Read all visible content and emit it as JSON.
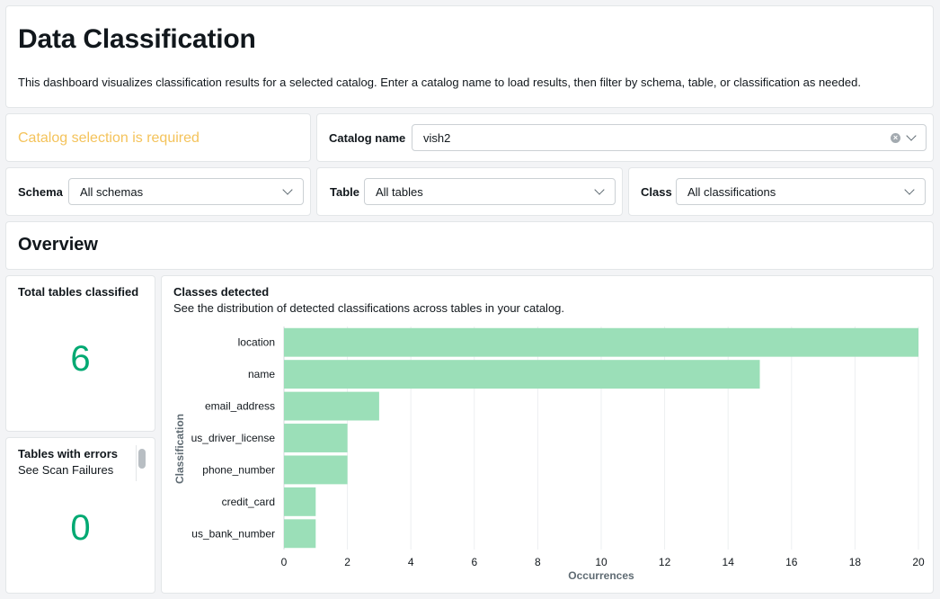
{
  "header": {
    "title": "Data Classification",
    "description": "This dashboard visualizes classification results for a selected catalog. Enter a catalog name to load results, then filter by schema, table, or classification as needed."
  },
  "catalog_warning": "Catalog selection is required",
  "filters": {
    "catalog": {
      "label": "Catalog name",
      "value": "vish2"
    },
    "schema": {
      "label": "Schema",
      "value": "All schemas"
    },
    "table": {
      "label": "Table",
      "value": "All tables"
    },
    "class": {
      "label": "Class",
      "value": "All classifications"
    }
  },
  "overview": {
    "title": "Overview"
  },
  "kpi_total": {
    "title": "Total tables classified",
    "value": "6"
  },
  "kpi_errors": {
    "title": "Tables with errors",
    "subtitle": "See Scan Failures",
    "value": "0"
  },
  "chart": {
    "title": "Classes detected",
    "subtitle": "See the distribution of detected classifications across tables in your catalog."
  },
  "colors": {
    "bar": "#9bdfb8",
    "accent_green": "#00a972",
    "warning": "#f4c35b"
  },
  "chart_data": {
    "type": "bar",
    "orientation": "horizontal",
    "categories": [
      "location",
      "name",
      "email_address",
      "us_driver_license",
      "phone_number",
      "credit_card",
      "us_bank_number"
    ],
    "values": [
      20,
      15,
      3,
      2,
      2,
      1,
      1
    ],
    "xlabel": "Occurrences",
    "ylabel": "Classification",
    "xlim": [
      0,
      20
    ],
    "xticks": [
      0,
      2,
      4,
      6,
      8,
      10,
      12,
      14,
      16,
      18,
      20
    ],
    "grid": true
  }
}
